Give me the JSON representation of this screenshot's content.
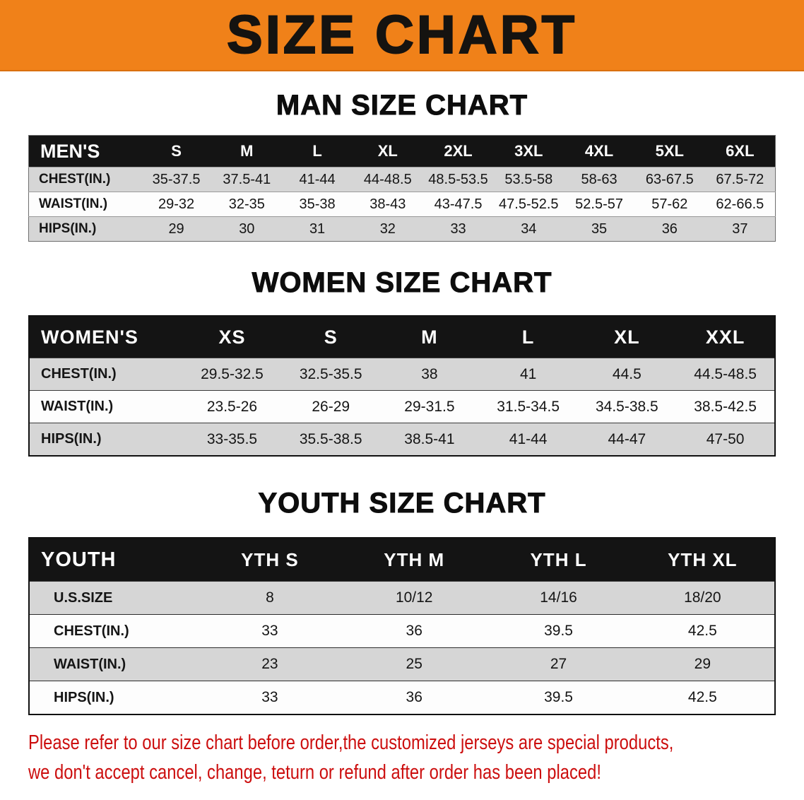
{
  "colors": {
    "banner-bg": "#F08119",
    "header-bg": "#141414",
    "shade-bg": "#d6d6d6",
    "footer-red": "#CC0E0E"
  },
  "banner": {
    "title": "SIZE CHART"
  },
  "sections": {
    "men": {
      "title": "MAN SIZE CHART",
      "table": {
        "header": [
          "MEN'S",
          "S",
          "M",
          "L",
          "XL",
          "2XL",
          "3XL",
          "4XL",
          "5XL",
          "6XL"
        ],
        "rows": [
          [
            "CHEST(IN.)",
            "35-37.5",
            "37.5-41",
            "41-44",
            "44-48.5",
            "48.5-53.5",
            "53.5-58",
            "58-63",
            "63-67.5",
            "67.5-72"
          ],
          [
            "WAIST(IN.)",
            "29-32",
            "32-35",
            "35-38",
            "38-43",
            "43-47.5",
            "47.5-52.5",
            "52.5-57",
            "57-62",
            "62-66.5"
          ],
          [
            "HIPS(IN.)",
            "29",
            "30",
            "31",
            "32",
            "33",
            "34",
            "35",
            "36",
            "37"
          ]
        ]
      }
    },
    "women": {
      "title": "WOMEN SIZE CHART",
      "table": {
        "header": [
          "WOMEN'S",
          "XS",
          "S",
          "M",
          "L",
          "XL",
          "XXL"
        ],
        "rows": [
          [
            "CHEST(IN.)",
            "29.5-32.5",
            "32.5-35.5",
            "38",
            "41",
            "44.5",
            "44.5-48.5"
          ],
          [
            "WAIST(IN.)",
            "23.5-26",
            "26-29",
            "29-31.5",
            "31.5-34.5",
            "34.5-38.5",
            "38.5-42.5"
          ],
          [
            "HIPS(IN.)",
            "33-35.5",
            "35.5-38.5",
            "38.5-41",
            "41-44",
            "44-47",
            "47-50"
          ]
        ]
      }
    },
    "youth": {
      "title": "YOUTH SIZE CHART",
      "table": {
        "header": [
          "YOUTH",
          "YTH S",
          "YTH M",
          "YTH L",
          "YTH XL"
        ],
        "rows": [
          [
            "U.S.SIZE",
            "8",
            "10/12",
            "14/16",
            "18/20"
          ],
          [
            "CHEST(IN.)",
            "33",
            "36",
            "39.5",
            "42.5"
          ],
          [
            "WAIST(IN.)",
            "23",
            "25",
            "27",
            "29"
          ],
          [
            "HIPS(IN.)",
            "33",
            "36",
            "39.5",
            "42.5"
          ]
        ]
      }
    }
  },
  "footer": {
    "line1": "Please refer to our size chart before order,the customized jerseys are special products,",
    "line2": "we don't accept cancel, change, teturn or refund after order has been placed!"
  }
}
